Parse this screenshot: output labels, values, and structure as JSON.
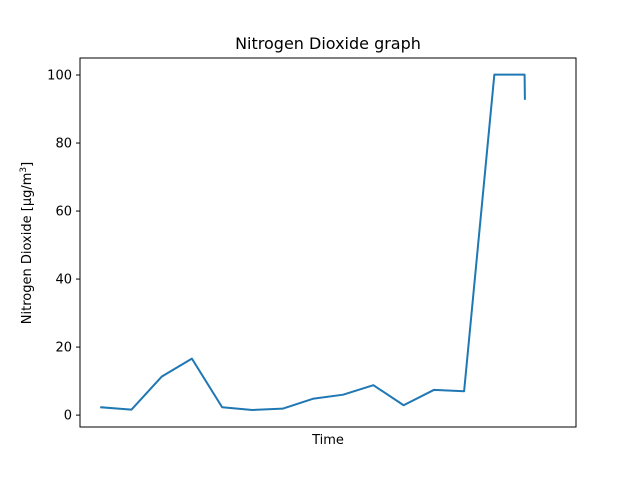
{
  "chart_data": {
    "type": "line",
    "title": "Nitrogen Dioxide graph",
    "xlabel": "Time",
    "ylabel_main": "Nitrogen Dioxide [µg/m",
    "ylabel_sup": "3",
    "ylabel_end": "]",
    "ylim": [
      -3.5,
      105
    ],
    "xlim": [
      -0.7,
      15.7
    ],
    "y_ticks": [
      0,
      20,
      40,
      60,
      80,
      100
    ],
    "y_tick_labels": [
      "0",
      "20",
      "40",
      "60",
      "80",
      "100"
    ],
    "x_ticks_shown": false,
    "grid": false,
    "legend": "none",
    "color": "#1f77b4",
    "series": [
      {
        "x": [
          0,
          1,
          2,
          3,
          4,
          5,
          6,
          7,
          8,
          9,
          10,
          11,
          12,
          13,
          14,
          14.01
        ],
        "values": [
          2.3,
          1.6,
          11.3,
          16.6,
          2.3,
          1.5,
          1.9,
          4.8,
          6.0,
          8.8,
          2.9,
          7.4,
          7.0,
          100.1,
          100.1,
          93.0
        ]
      }
    ]
  }
}
